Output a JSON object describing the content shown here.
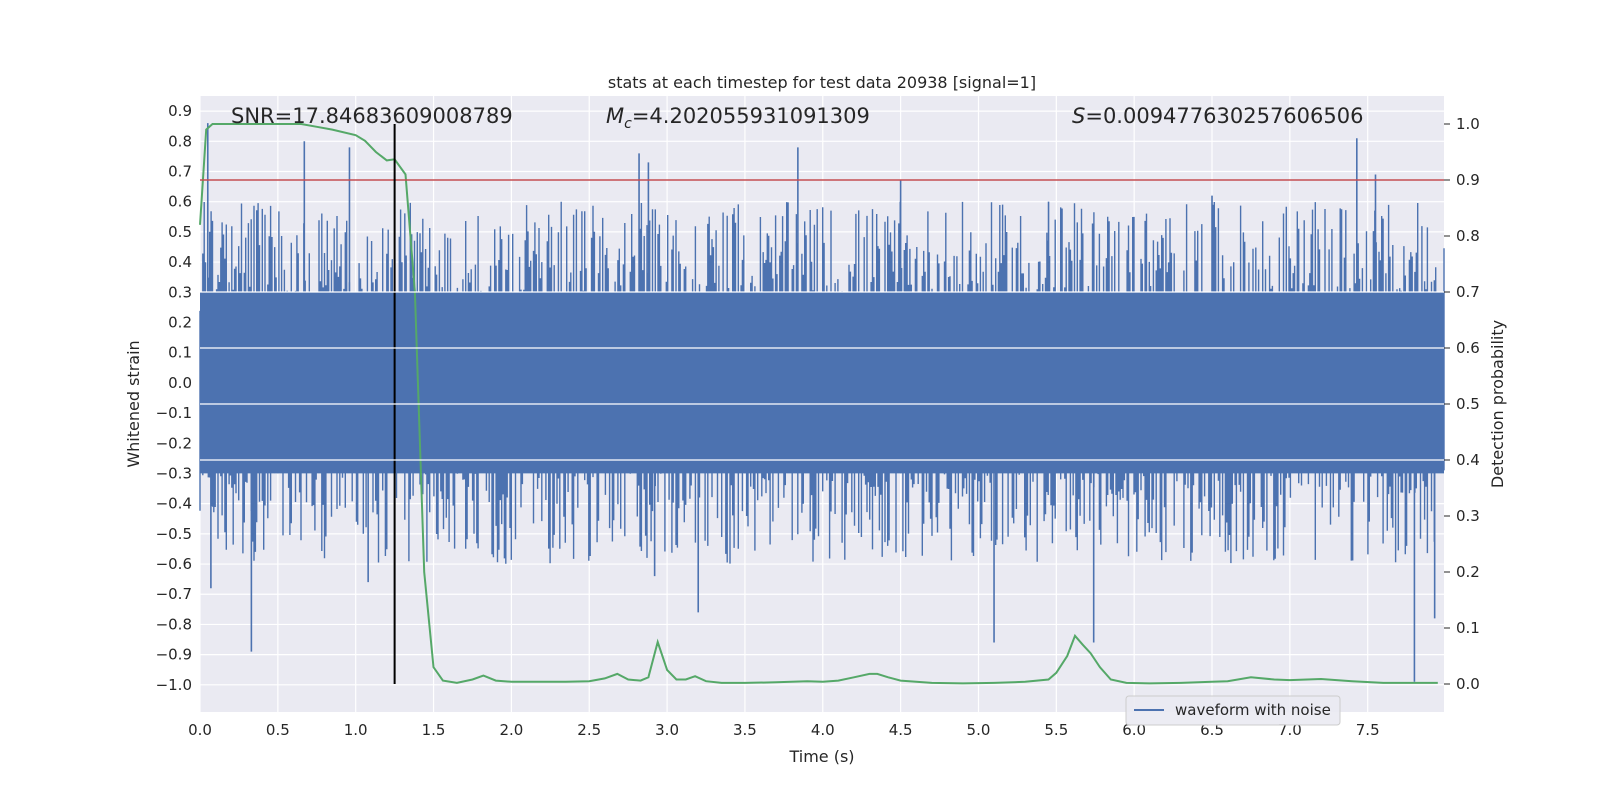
{
  "chart_data": {
    "type": "line",
    "title": "stats at each timestep for test data 20938 [signal=1]",
    "xlabel": "Time (s)",
    "ylabel": "Whitened strain",
    "y2label": "Detection probability",
    "xlim": [
      0.0,
      7.99
    ],
    "ylim": [
      -1.09,
      0.95
    ],
    "y2lim": [
      -0.05,
      1.05
    ],
    "xticks": [
      "0.0",
      "0.5",
      "1.0",
      "1.5",
      "2.0",
      "2.5",
      "3.0",
      "3.5",
      "4.0",
      "4.5",
      "5.0",
      "5.5",
      "6.0",
      "6.5",
      "7.0",
      "7.5"
    ],
    "yticks": [
      "0.9",
      "0.8",
      "0.7",
      "0.6",
      "0.5",
      "0.4",
      "0.3",
      "0.2",
      "0.1",
      "0.0",
      "-0.1",
      "-0.2",
      "-0.3",
      "-0.4",
      "-0.5",
      "-0.6",
      "-0.7",
      "-0.8",
      "-0.9",
      "-1.0"
    ],
    "y2ticks": [
      "1.0",
      "0.9",
      "0.8",
      "0.7",
      "0.6",
      "0.5",
      "0.4",
      "0.3",
      "0.2",
      "0.1",
      "0.0"
    ],
    "grid": true,
    "legend_position": "lower-right",
    "annotations": {
      "snr": "SNR=17.84683609008789",
      "mc_symbol": "M",
      "mc_sub": "c",
      "mc_value": "=4.202055931091309",
      "s_symbol": "S",
      "s_value": "=0.009477630257606506"
    },
    "threshold_y2": 0.9,
    "vline_x": 1.25,
    "series": [
      {
        "name": "waveform with noise",
        "color": "#4c72b0",
        "axis": "left",
        "kind": "noise",
        "approx_envelope": {
          "typical_max": 0.45,
          "typical_min": -0.45,
          "peak_max": 0.86,
          "peak_min": -0.99
        },
        "spikes": [
          {
            "x": 0.05,
            "y": 0.86
          },
          {
            "x": 0.07,
            "y": -0.68
          },
          {
            "x": 0.33,
            "y": -0.89
          },
          {
            "x": 0.67,
            "y": 0.8
          },
          {
            "x": 0.96,
            "y": 0.78
          },
          {
            "x": 1.08,
            "y": -0.66
          },
          {
            "x": 2.82,
            "y": 0.76
          },
          {
            "x": 2.88,
            "y": 0.73
          },
          {
            "x": 2.92,
            "y": -0.64
          },
          {
            "x": 3.2,
            "y": -0.76
          },
          {
            "x": 3.84,
            "y": 0.78
          },
          {
            "x": 4.5,
            "y": 0.67
          },
          {
            "x": 5.1,
            "y": -0.86
          },
          {
            "x": 5.45,
            "y": 0.6
          },
          {
            "x": 5.74,
            "y": -0.86
          },
          {
            "x": 6.5,
            "y": 0.62
          },
          {
            "x": 7.43,
            "y": 0.81
          },
          {
            "x": 7.55,
            "y": 0.69
          },
          {
            "x": 7.8,
            "y": -0.99
          },
          {
            "x": 7.93,
            "y": -0.78
          }
        ]
      },
      {
        "name": "",
        "color": "#55a868",
        "axis": "right",
        "kind": "line",
        "x": [
          0.0,
          0.04,
          0.08,
          0.12,
          0.2,
          0.3,
          0.5,
          0.65,
          0.75,
          0.85,
          1.0,
          1.06,
          1.13,
          1.2,
          1.25,
          1.32,
          1.38,
          1.44,
          1.5,
          1.56,
          1.65,
          1.75,
          1.82,
          1.9,
          2.0,
          2.2,
          2.35,
          2.5,
          2.6,
          2.68,
          2.75,
          2.83,
          2.88,
          2.94,
          3.0,
          3.06,
          3.12,
          3.18,
          3.25,
          3.35,
          3.5,
          3.7,
          3.9,
          4.0,
          4.1,
          4.2,
          4.3,
          4.35,
          4.42,
          4.5,
          4.7,
          4.9,
          5.1,
          5.3,
          5.45,
          5.5,
          5.57,
          5.62,
          5.67,
          5.72,
          5.78,
          5.85,
          5.95,
          6.1,
          6.3,
          6.5,
          6.6,
          6.75,
          6.9,
          7.0,
          7.2,
          7.4,
          7.6,
          7.8,
          7.95
        ],
        "y": [
          0.82,
          0.99,
          1.0,
          1.0,
          1.0,
          1.0,
          1.0,
          1.0,
          0.995,
          0.99,
          0.98,
          0.97,
          0.95,
          0.935,
          0.937,
          0.91,
          0.7,
          0.2,
          0.03,
          0.006,
          0.002,
          0.008,
          0.015,
          0.006,
          0.004,
          0.004,
          0.004,
          0.005,
          0.01,
          0.018,
          0.008,
          0.006,
          0.012,
          0.075,
          0.025,
          0.008,
          0.008,
          0.014,
          0.005,
          0.002,
          0.002,
          0.003,
          0.005,
          0.004,
          0.006,
          0.012,
          0.018,
          0.018,
          0.012,
          0.006,
          0.002,
          0.001,
          0.002,
          0.004,
          0.008,
          0.02,
          0.05,
          0.086,
          0.07,
          0.055,
          0.03,
          0.008,
          0.002,
          0.001,
          0.002,
          0.004,
          0.005,
          0.012,
          0.008,
          0.007,
          0.009,
          0.005,
          0.002,
          0.002,
          0.002
        ]
      }
    ]
  }
}
